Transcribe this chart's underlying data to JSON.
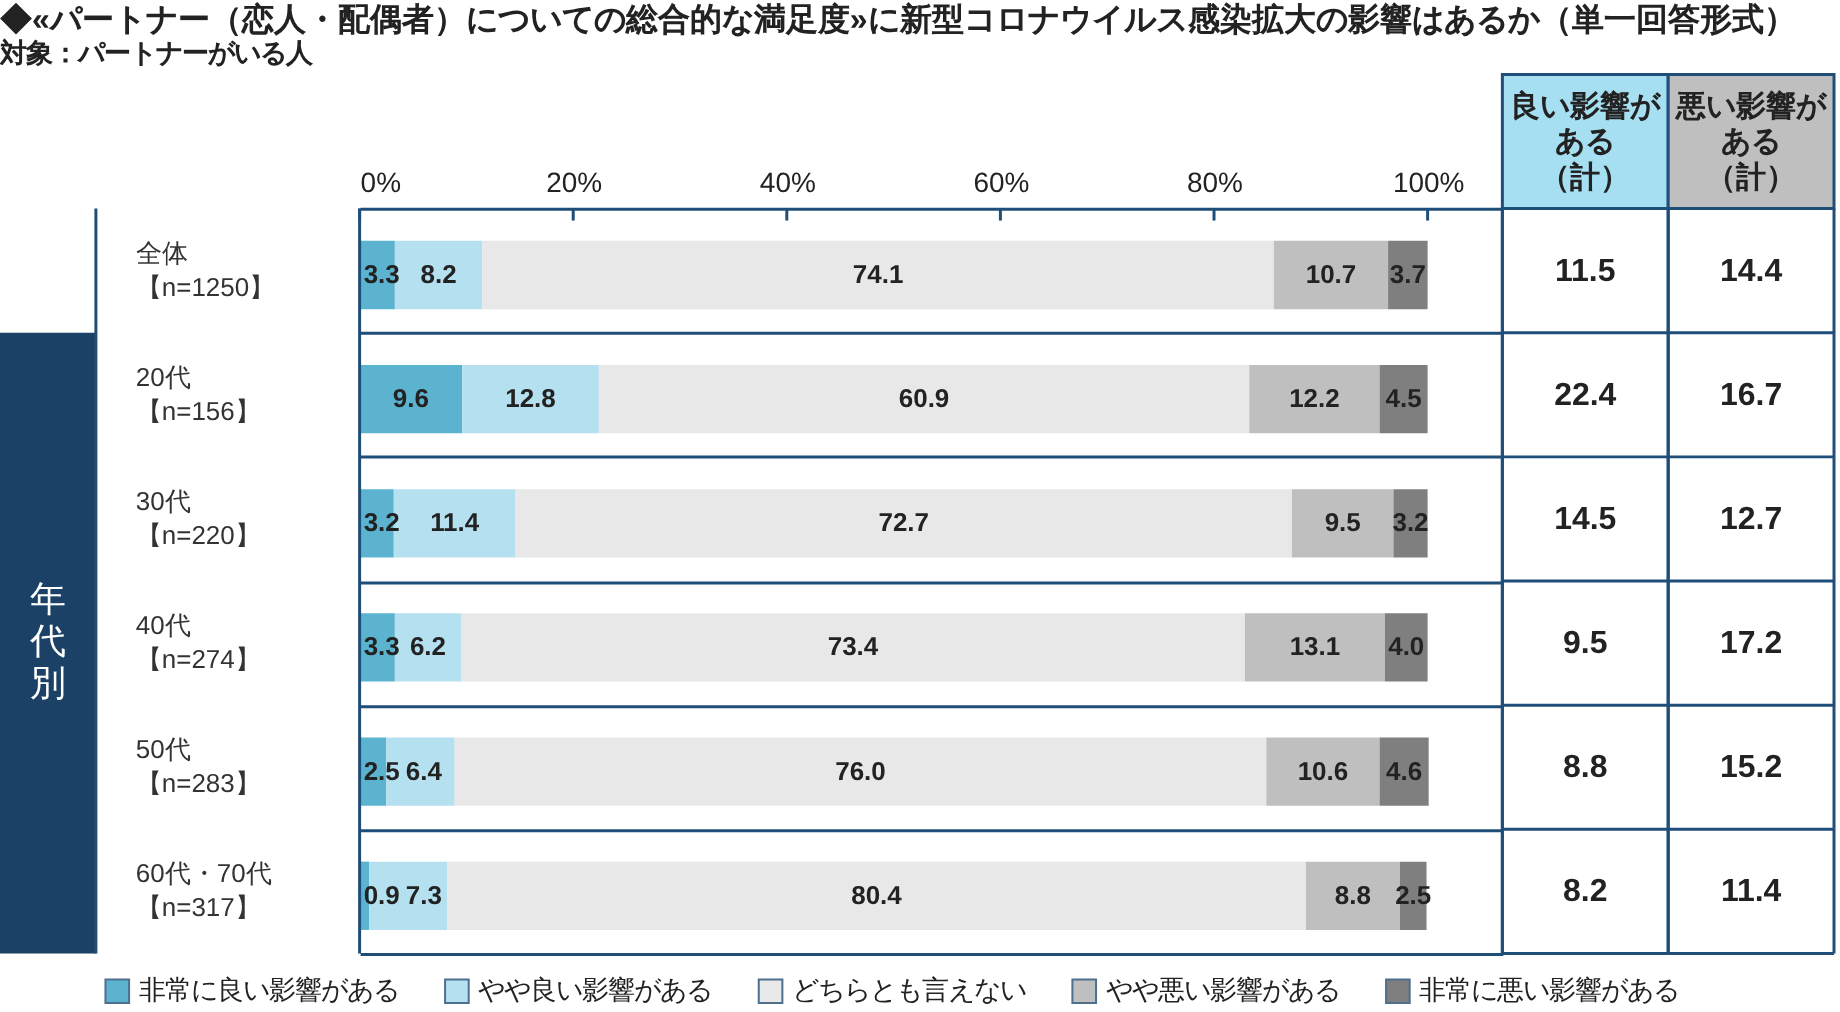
{
  "chart_data": [
    {
      "type": "bar",
      "orientation": "horizontal",
      "stacked": true,
      "title": "◆«パートナー（恋人・配偶者）についての総合的な満足度»に新型コロナウイルス感染拡大の影響はあるか（単一回答形式）",
      "subtitle": "対象：パートナーがいる人",
      "categories": [
        "全体【n=1250】",
        "20代【n=156】",
        "30代【n=220】",
        "40代【n=274】",
        "50代【n=283】",
        "60代・70代【n=317】"
      ],
      "series": [
        {
          "name": "非常に良い影響がある",
          "color": "#5bb3cf",
          "values": [
            3.3,
            9.6,
            3.2,
            3.3,
            2.5,
            0.9
          ],
          "value_labels": [
            "3.3",
            "9.6",
            "3.2",
            "3.3",
            "2.5",
            "0.9"
          ]
        },
        {
          "name": "やや良い影響がある",
          "color": "#b5e0f0",
          "values": [
            8.2,
            12.8,
            11.4,
            6.2,
            6.4,
            7.3
          ],
          "value_labels": [
            "8.2",
            "12.8",
            "11.4",
            "6.2",
            "6.4",
            "7.3"
          ]
        },
        {
          "name": "どちらとも言えない",
          "color": "#e8e8e8",
          "values": [
            74.1,
            60.9,
            72.7,
            73.4,
            76.0,
            80.4
          ],
          "value_labels": [
            "74.1",
            "60.9",
            "72.7",
            "73.4",
            "76.0",
            "80.4"
          ]
        },
        {
          "name": "やや悪い影響がある",
          "color": "#bfbfbf",
          "values": [
            10.7,
            12.2,
            9.5,
            13.1,
            10.6,
            8.8
          ],
          "value_labels": [
            "10.7",
            "12.2",
            "9.5",
            "13.1",
            "10.6",
            "8.8"
          ]
        },
        {
          "name": "非常に悪い影響がある",
          "color": "#7f7f7f",
          "values": [
            3.7,
            4.5,
            3.2,
            4.0,
            4.6,
            2.5
          ],
          "value_labels": [
            "3.7",
            "4.5",
            "3.2",
            "4.0",
            "4.6",
            "2.5"
          ]
        }
      ],
      "xlim": [
        0,
        107
      ],
      "xticks": [
        {
          "value": 0,
          "label": "0%"
        },
        {
          "value": 20,
          "label": "20%"
        },
        {
          "value": 40,
          "label": "40%"
        },
        {
          "value": 60,
          "label": "60%"
        },
        {
          "value": 80,
          "label": "80%"
        },
        {
          "value": 100,
          "label": "100%"
        }
      ],
      "grid": "y",
      "legend": "bottom",
      "annotations": [
        "年代別"
      ]
    },
    {
      "type": "other",
      "title": "良い影響がある（計）",
      "color": "#a6dff2",
      "values": [
        11.5,
        22.4,
        14.5,
        9.5,
        8.8,
        8.2
      ],
      "data_labels": true
    },
    {
      "type": "other",
      "title": "悪い影響がある（計）",
      "color": "#bfbfbf",
      "values": [
        14.4,
        16.7,
        12.7,
        17.2,
        15.2,
        11.4
      ],
      "data_labels": true
    }
  ]
}
